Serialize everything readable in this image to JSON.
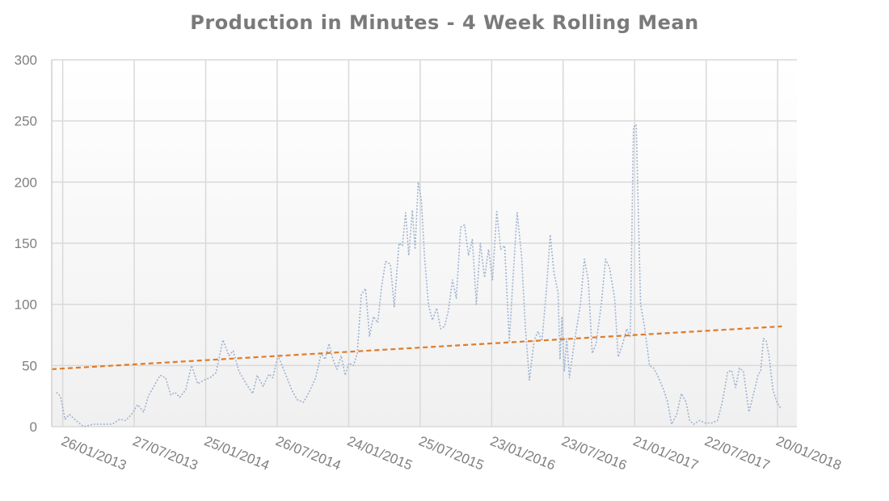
{
  "chart_data": {
    "type": "line",
    "title": "Production in Minutes - 4 Week Rolling Mean",
    "xlabel": "",
    "ylabel": "",
    "ylim": [
      0,
      300
    ],
    "yticks": [
      0,
      50,
      100,
      150,
      200,
      250,
      300
    ],
    "xlim": [
      "2012-12-29",
      "2018-03-10"
    ],
    "xticks": [
      "2013-01-26",
      "2013-07-27",
      "2014-01-25",
      "2014-07-26",
      "2015-01-24",
      "2015-07-25",
      "2016-01-23",
      "2016-07-23",
      "2017-01-21",
      "2017-07-22",
      "2018-01-20"
    ],
    "xtick_labels": [
      "26/01/2013",
      "27/07/2013",
      "25/01/2014",
      "26/07/2014",
      "24/01/2015",
      "25/07/2015",
      "23/01/2016",
      "23/07/2016",
      "21/01/2017",
      "22/07/2017",
      "20/01/2018"
    ],
    "grid": true,
    "legend": "none",
    "series": [
      {
        "style": "dotted",
        "color": "#9fb3d1",
        "points": [
          [
            "2013-01-10",
            28
          ],
          [
            "2013-01-20",
            25
          ],
          [
            "2013-02-01",
            6
          ],
          [
            "2013-02-12",
            10
          ],
          [
            "2013-03-01",
            5
          ],
          [
            "2013-03-20",
            0
          ],
          [
            "2013-04-15",
            2
          ],
          [
            "2013-05-10",
            2
          ],
          [
            "2013-06-01",
            2
          ],
          [
            "2013-06-20",
            6
          ],
          [
            "2013-07-05",
            5
          ],
          [
            "2013-07-20",
            10
          ],
          [
            "2013-08-05",
            18
          ],
          [
            "2013-08-20",
            12
          ],
          [
            "2013-09-01",
            25
          ],
          [
            "2013-09-15",
            33
          ],
          [
            "2013-10-01",
            42
          ],
          [
            "2013-10-15",
            40
          ],
          [
            "2013-10-28",
            26
          ],
          [
            "2013-11-08",
            28
          ],
          [
            "2013-11-20",
            24
          ],
          [
            "2013-12-05",
            30
          ],
          [
            "2013-12-20",
            50
          ],
          [
            "2014-01-05",
            35
          ],
          [
            "2014-01-20",
            38
          ],
          [
            "2014-02-05",
            40
          ],
          [
            "2014-02-20",
            44
          ],
          [
            "2014-03-10",
            71
          ],
          [
            "2014-03-25",
            58
          ],
          [
            "2014-04-05",
            62
          ],
          [
            "2014-04-20",
            45
          ],
          [
            "2014-05-10",
            34
          ],
          [
            "2014-05-25",
            27
          ],
          [
            "2014-06-05",
            42
          ],
          [
            "2014-06-20",
            33
          ],
          [
            "2014-07-05",
            43
          ],
          [
            "2014-07-15",
            40
          ],
          [
            "2014-07-28",
            58
          ],
          [
            "2014-08-15",
            44
          ],
          [
            "2014-09-01",
            30
          ],
          [
            "2014-09-15",
            22
          ],
          [
            "2014-10-01",
            20
          ],
          [
            "2014-10-15",
            28
          ],
          [
            "2014-11-01",
            40
          ],
          [
            "2014-11-15",
            60
          ],
          [
            "2014-11-25",
            55
          ],
          [
            "2014-12-05",
            68
          ],
          [
            "2014-12-15",
            55
          ],
          [
            "2014-12-25",
            47
          ],
          [
            "2015-01-05",
            58
          ],
          [
            "2015-01-15",
            42
          ],
          [
            "2015-01-25",
            52
          ],
          [
            "2015-02-05",
            50
          ],
          [
            "2015-02-15",
            60
          ],
          [
            "2015-02-25",
            108
          ],
          [
            "2015-03-08",
            113
          ],
          [
            "2015-03-18",
            74
          ],
          [
            "2015-03-28",
            90
          ],
          [
            "2015-04-08",
            85
          ],
          [
            "2015-04-18",
            115
          ],
          [
            "2015-04-28",
            135
          ],
          [
            "2015-05-10",
            133
          ],
          [
            "2015-05-20",
            98
          ],
          [
            "2015-06-01",
            150
          ],
          [
            "2015-06-10",
            148
          ],
          [
            "2015-06-18",
            175
          ],
          [
            "2015-06-26",
            140
          ],
          [
            "2015-07-05",
            177
          ],
          [
            "2015-07-12",
            145
          ],
          [
            "2015-07-20",
            200
          ],
          [
            "2015-07-28",
            185
          ],
          [
            "2015-08-05",
            140
          ],
          [
            "2015-08-15",
            100
          ],
          [
            "2015-08-25",
            87
          ],
          [
            "2015-09-05",
            97
          ],
          [
            "2015-09-15",
            80
          ],
          [
            "2015-09-25",
            82
          ],
          [
            "2015-10-05",
            95
          ],
          [
            "2015-10-15",
            120
          ],
          [
            "2015-10-25",
            105
          ],
          [
            "2015-11-05",
            163
          ],
          [
            "2015-11-15",
            165
          ],
          [
            "2015-11-25",
            140
          ],
          [
            "2015-12-05",
            153
          ],
          [
            "2015-12-15",
            100
          ],
          [
            "2015-12-25",
            150
          ],
          [
            "2016-01-05",
            122
          ],
          [
            "2016-01-15",
            145
          ],
          [
            "2016-01-25",
            120
          ],
          [
            "2016-02-05",
            176
          ],
          [
            "2016-02-15",
            145
          ],
          [
            "2016-02-25",
            148
          ],
          [
            "2016-03-08",
            70
          ],
          [
            "2016-03-18",
            125
          ],
          [
            "2016-03-28",
            175
          ],
          [
            "2016-04-08",
            140
          ],
          [
            "2016-04-18",
            80
          ],
          [
            "2016-04-28",
            38
          ],
          [
            "2016-05-10",
            70
          ],
          [
            "2016-05-20",
            78
          ],
          [
            "2016-05-30",
            70
          ],
          [
            "2016-06-10",
            110
          ],
          [
            "2016-06-20",
            157
          ],
          [
            "2016-06-30",
            125
          ],
          [
            "2016-07-10",
            110
          ],
          [
            "2016-07-15",
            55
          ],
          [
            "2016-07-20",
            90
          ],
          [
            "2016-07-26",
            45
          ],
          [
            "2016-08-01",
            72
          ],
          [
            "2016-08-08",
            40
          ],
          [
            "2016-08-20",
            68
          ],
          [
            "2016-09-05",
            100
          ],
          [
            "2016-09-15",
            137
          ],
          [
            "2016-09-25",
            120
          ],
          [
            "2016-10-05",
            60
          ],
          [
            "2016-10-15",
            68
          ],
          [
            "2016-10-28",
            100
          ],
          [
            "2016-11-08",
            137
          ],
          [
            "2016-11-18",
            130
          ],
          [
            "2016-12-01",
            105
          ],
          [
            "2016-12-10",
            57
          ],
          [
            "2016-12-20",
            66
          ],
          [
            "2017-01-01",
            80
          ],
          [
            "2017-01-10",
            73
          ],
          [
            "2017-01-18",
            245
          ],
          [
            "2017-01-25",
            247
          ],
          [
            "2017-02-05",
            100
          ],
          [
            "2017-02-15",
            82
          ],
          [
            "2017-02-28",
            50
          ],
          [
            "2017-03-10",
            48
          ],
          [
            "2017-03-20",
            42
          ],
          [
            "2017-04-05",
            30
          ],
          [
            "2017-04-15",
            20
          ],
          [
            "2017-04-25",
            2
          ],
          [
            "2017-05-08",
            10
          ],
          [
            "2017-05-20",
            27
          ],
          [
            "2017-06-01",
            20
          ],
          [
            "2017-06-10",
            5
          ],
          [
            "2017-06-20",
            2
          ],
          [
            "2017-07-05",
            5
          ],
          [
            "2017-07-20",
            3
          ],
          [
            "2017-08-05",
            3
          ],
          [
            "2017-08-20",
            5
          ],
          [
            "2017-09-01",
            20
          ],
          [
            "2017-09-15",
            45
          ],
          [
            "2017-09-25",
            46
          ],
          [
            "2017-10-05",
            32
          ],
          [
            "2017-10-15",
            48
          ],
          [
            "2017-10-25",
            45
          ],
          [
            "2017-11-08",
            12
          ],
          [
            "2017-11-20",
            27
          ],
          [
            "2017-12-01",
            42
          ],
          [
            "2017-12-08",
            46
          ],
          [
            "2017-12-15",
            72
          ],
          [
            "2017-12-22",
            70
          ],
          [
            "2017-12-29",
            58
          ],
          [
            "2018-01-08",
            30
          ],
          [
            "2018-01-18",
            20
          ],
          [
            "2018-01-28",
            15
          ]
        ]
      },
      {
        "style": "dashed",
        "color": "#e07b28",
        "points": [
          [
            "2012-12-29",
            47
          ],
          [
            "2018-01-31",
            82
          ]
        ]
      }
    ]
  }
}
